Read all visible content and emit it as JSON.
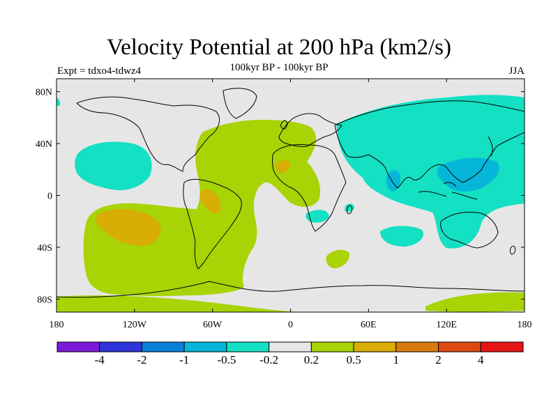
{
  "title": "Velocity Potential at 200 hPa (km2/s)",
  "subtitle": "100kyr BP - 100kyr BP",
  "left_label": "Expt = tdxo4-tdwz4",
  "right_label": "JJA",
  "map": {
    "projection": "cylindrical-equidistant",
    "lon_range": [
      -180,
      180
    ],
    "lat_range": [
      -90,
      90
    ],
    "lat_ticks": [
      {
        "label": "80N"
      },
      {
        "label": "40N"
      },
      {
        "label": "0"
      },
      {
        "label": "40S"
      },
      {
        "label": "80S"
      }
    ],
    "lon_ticks": [
      {
        "label": "180"
      },
      {
        "label": "120W"
      },
      {
        "label": "60W"
      },
      {
        "label": "0"
      },
      {
        "label": "60E"
      },
      {
        "label": "120E"
      },
      {
        "label": "180"
      }
    ],
    "background_color": "#e6e6e6"
  },
  "colorbar": {
    "colors": [
      "#7b1ad9",
      "#2f35d8",
      "#0a7fd8",
      "#05b6d9",
      "#14e0c3",
      "#e6e6e6",
      "#a8d305",
      "#d8ad05",
      "#db7a0c",
      "#dc4a10",
      "#e81515"
    ],
    "labels": [
      "-4",
      "-2",
      "-1",
      "-0.5",
      "-0.2",
      "0.2",
      "0.5",
      "1",
      "2",
      "4"
    ]
  }
}
